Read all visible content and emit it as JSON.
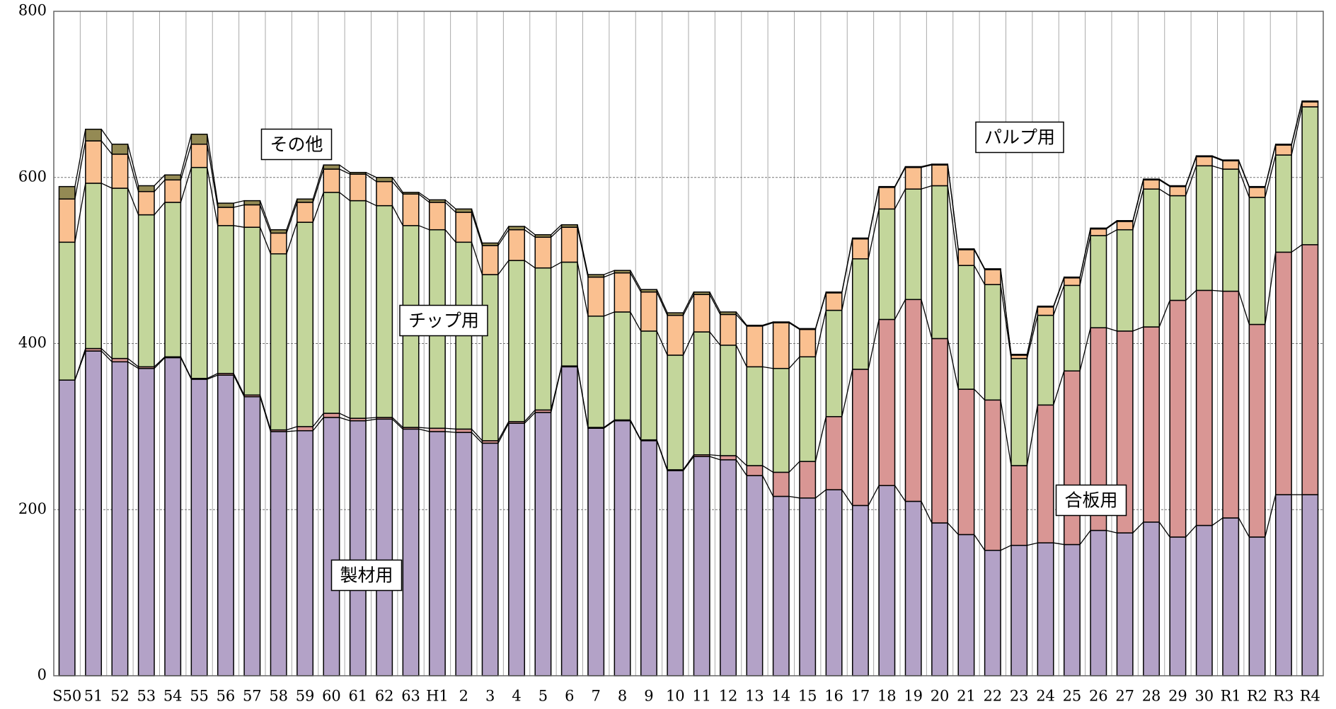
{
  "chart_data": {
    "type": "stacked-bar",
    "categories": [
      "S50",
      "51",
      "52",
      "53",
      "54",
      "55",
      "56",
      "57",
      "58",
      "59",
      "60",
      "61",
      "62",
      "63",
      "H1",
      "2",
      "3",
      "4",
      "5",
      "6",
      "7",
      "8",
      "9",
      "10",
      "11",
      "12",
      "13",
      "14",
      "15",
      "16",
      "17",
      "18",
      "19",
      "20",
      "21",
      "22",
      "23",
      "24",
      "25",
      "26",
      "27",
      "28",
      "29",
      "30",
      "R1",
      "R2",
      "R3",
      "R4"
    ],
    "series": [
      {
        "name": "製材用",
        "color": "#b3a2c7",
        "values": [
          356,
          391,
          378,
          370,
          383,
          357,
          362,
          336,
          294,
          295,
          311,
          307,
          309,
          297,
          294,
          293,
          280,
          304,
          317,
          372,
          298,
          307,
          283,
          247,
          264,
          260,
          241,
          216,
          214,
          224,
          205,
          229,
          210,
          184,
          170,
          151,
          157,
          160,
          158,
          175,
          172,
          185,
          167,
          181,
          190,
          167,
          218,
          218
        ]
      },
      {
        "name": "合板用",
        "color": "#d99694",
        "values": [
          0,
          3,
          4,
          2,
          1,
          1,
          2,
          2,
          2,
          5,
          5,
          3,
          2,
          2,
          4,
          4,
          3,
          2,
          3,
          1,
          1,
          1,
          1,
          1,
          2,
          5,
          12,
          29,
          44,
          88,
          164,
          200,
          243,
          222,
          175,
          181,
          96,
          166,
          209,
          244,
          243,
          235,
          285,
          283,
          273,
          256,
          292,
          301
        ]
      },
      {
        "name": "チップ用",
        "color": "#c3d69b",
        "values": [
          166,
          199,
          205,
          183,
          186,
          254,
          178,
          202,
          212,
          246,
          266,
          262,
          255,
          243,
          239,
          225,
          200,
          194,
          171,
          125,
          134,
          130,
          131,
          138,
          148,
          133,
          119,
          125,
          126,
          128,
          133,
          133,
          133,
          184,
          149,
          139,
          129,
          108,
          103,
          111,
          122,
          166,
          126,
          150,
          147,
          153,
          117,
          166
        ]
      },
      {
        "name": "パルプ用",
        "color": "#fac090",
        "values": [
          52,
          51,
          41,
          28,
          27,
          28,
          22,
          27,
          25,
          24,
          28,
          32,
          29,
          38,
          33,
          36,
          35,
          37,
          37,
          42,
          47,
          47,
          47,
          48,
          45,
          37,
          49,
          55,
          33,
          21,
          24,
          26,
          26,
          25,
          19,
          18,
          4,
          10,
          9,
          8,
          10,
          11,
          11,
          11,
          10,
          12,
          12,
          6
        ]
      },
      {
        "name": "その他",
        "color": "#948a54",
        "values": [
          15,
          14,
          12,
          7,
          6,
          12,
          5,
          5,
          4,
          4,
          5,
          2,
          5,
          2,
          3,
          4,
          3,
          4,
          3,
          3,
          3,
          3,
          3,
          3,
          3,
          3,
          1,
          1,
          1,
          1,
          1,
          1,
          1,
          1,
          1,
          1,
          1,
          1,
          1,
          1,
          1,
          1,
          1,
          1,
          1,
          1,
          1,
          1
        ]
      }
    ],
    "ylim": [
      0,
      800
    ],
    "yticks": [
      0,
      200,
      400,
      600,
      800
    ],
    "grid": true
  }
}
